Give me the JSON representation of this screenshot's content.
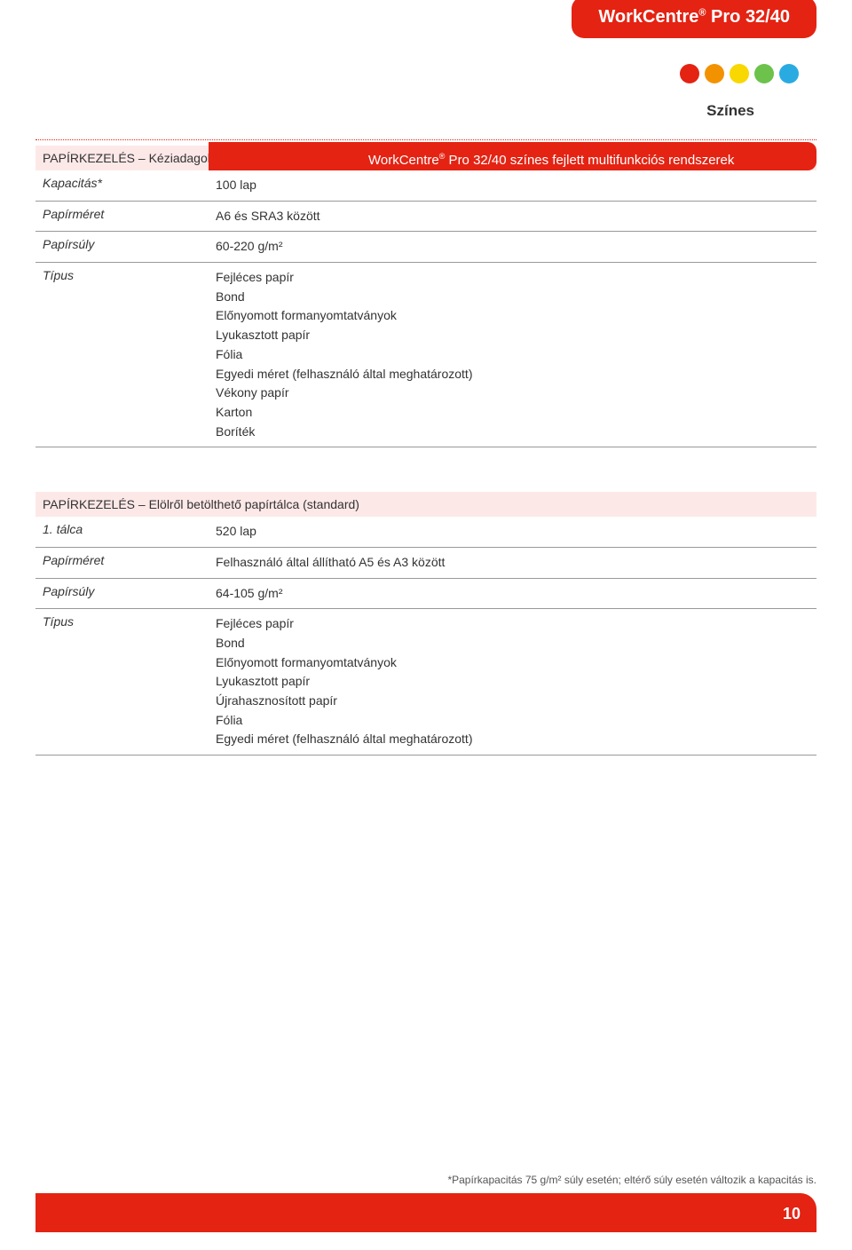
{
  "badge": {
    "line": "WorkCentre",
    "reg": "®",
    "rest": " Pro 32/40"
  },
  "dots": [
    "#e42313",
    "#f39200",
    "#f8d800",
    "#6cc24a",
    "#29abe2"
  ],
  "szines": "Színes",
  "redbar": {
    "prefix": "WorkCentre",
    "reg": "®",
    "rest": " Pro 32/40 színes fejlett multifunkciós rendszerek"
  },
  "section1": {
    "header_main": "PAPÍRKEZELÉS",
    "header_sub": " – Kéziadagoló tálca",
    "rows": [
      {
        "label": "Kapacitás*",
        "value": "100 lap"
      },
      {
        "label": "Papírméret",
        "value": "A6 és SRA3 között"
      },
      {
        "label": "Papírsúly",
        "value": "60-220 g/m²"
      },
      {
        "label": "Típus",
        "value": "Fejléces papír\nBond\nElőnyomott formanyomtatványok\nLyukasztott papír\nFólia\nEgyedi méret (felhasználó által meghatározott)\nVékony papír\nKarton\nBoríték"
      }
    ]
  },
  "section2": {
    "header_main": "PAPÍRKEZELÉS",
    "header_sub": " – Elölről betölthető papírtálca (standard)",
    "rows": [
      {
        "label": "1. tálca",
        "value": "520 lap"
      },
      {
        "label": "Papírméret",
        "value": "Felhasználó által állítható A5 és A3 között"
      },
      {
        "label": "Papírsúly",
        "value": "64-105 g/m²"
      },
      {
        "label": "Típus",
        "value": "Fejléces papír\nBond\nElőnyomott formanyomtatványok\nLyukasztott papír\nÚjrahasznosított papír\nFólia\nEgyedi méret (felhasználó által meghatározott)"
      }
    ]
  },
  "footnote": "*Papírkapacitás 75 g/m² súly esetén; eltérő súly esetén változik a kapacitás is.",
  "page_number": "10"
}
